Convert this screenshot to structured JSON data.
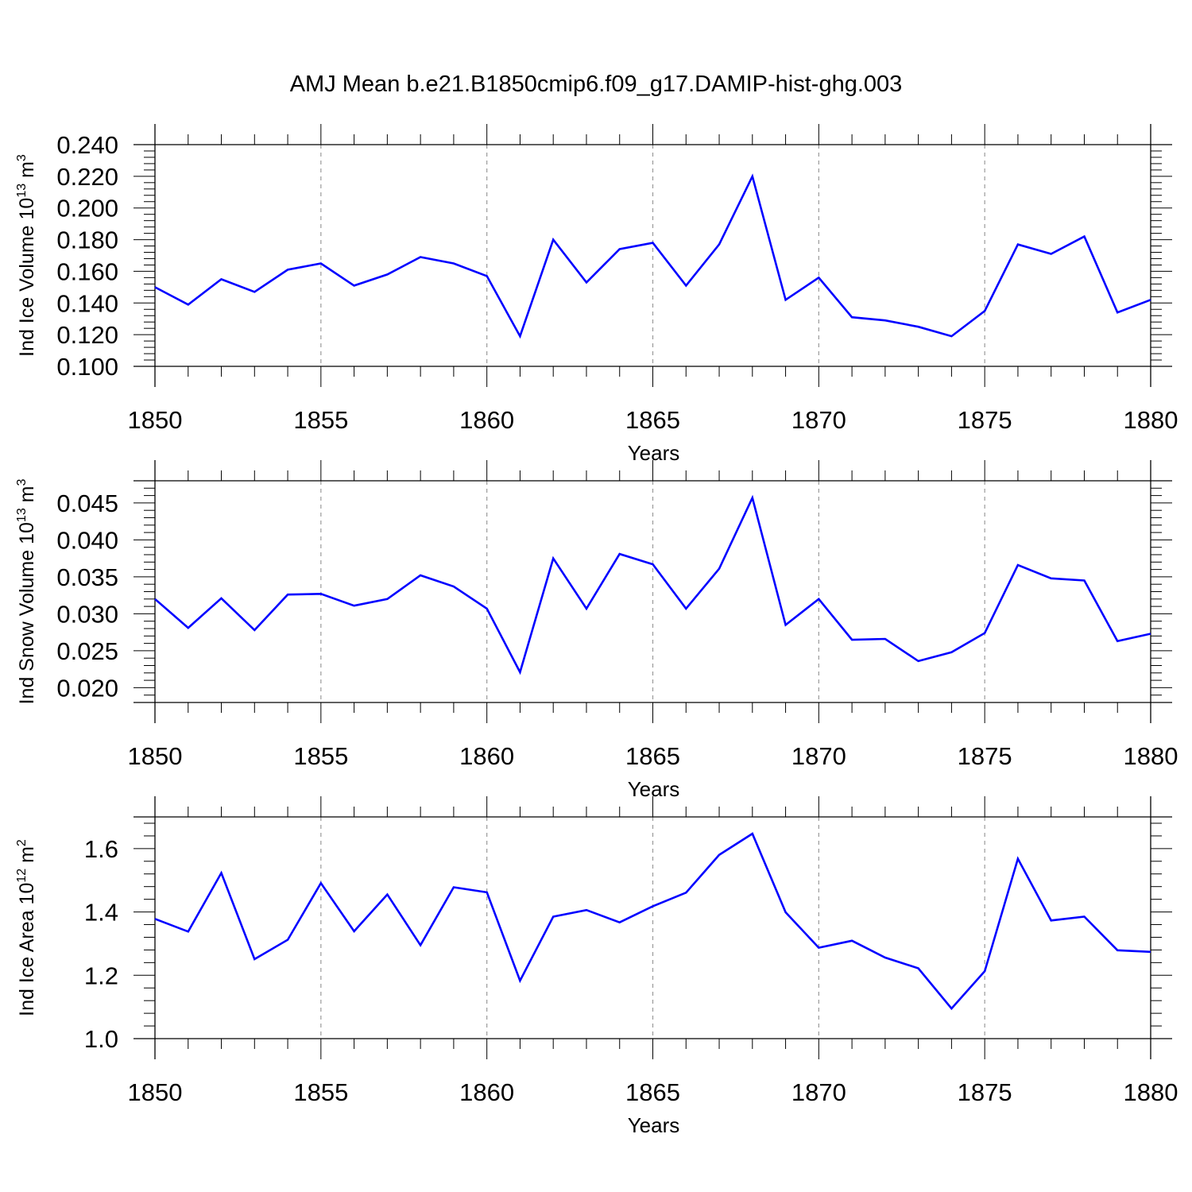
{
  "title": "AMJ Mean b.e21.B1850cmip6.f09_g17.DAMIP-hist-ghg.003",
  "chart_data": [
    {
      "type": "line",
      "title": "",
      "ylabel": "Ind Ice Volume 10",
      "ylabel_sup": "13",
      "ylabel_unit": " m",
      "ylabel_unit_sup": "3",
      "xlabel": "Years",
      "xlim": [
        1850,
        1880
      ],
      "ylim": [
        0.1,
        0.24
      ],
      "xticks": [
        "1850",
        "1855",
        "1860",
        "1865",
        "1870",
        "1875",
        "1880"
      ],
      "yticks": [
        "0.100",
        "0.120",
        "0.140",
        "0.160",
        "0.180",
        "0.200",
        "0.220",
        "0.240"
      ],
      "grid": "vertical dashed at major x ticks",
      "line_color": "#0000ff",
      "x": [
        1850,
        1851,
        1852,
        1853,
        1854,
        1855,
        1856,
        1857,
        1858,
        1859,
        1860,
        1861,
        1862,
        1863,
        1864,
        1865,
        1866,
        1867,
        1868,
        1869,
        1870,
        1871,
        1872,
        1873,
        1874,
        1875,
        1876,
        1877,
        1878,
        1879,
        1880
      ],
      "values": [
        0.15,
        0.139,
        0.155,
        0.147,
        0.161,
        0.165,
        0.151,
        0.158,
        0.169,
        0.165,
        0.157,
        0.119,
        0.18,
        0.153,
        0.174,
        0.178,
        0.151,
        0.177,
        0.22,
        0.142,
        0.156,
        0.131,
        0.129,
        0.125,
        0.119,
        0.135,
        0.177,
        0.171,
        0.182,
        0.134,
        0.142
      ]
    },
    {
      "type": "line",
      "title": "",
      "ylabel": "Ind Snow Volume 10",
      "ylabel_sup": "13",
      "ylabel_unit": " m",
      "ylabel_unit_sup": "3",
      "xlabel": "Years",
      "xlim": [
        1850,
        1880
      ],
      "ylim": [
        0.018,
        0.048
      ],
      "xticks": [
        "1850",
        "1855",
        "1860",
        "1865",
        "1870",
        "1875",
        "1880"
      ],
      "yticks": [
        "0.020",
        "0.025",
        "0.030",
        "0.035",
        "0.040",
        "0.045"
      ],
      "grid": "vertical dashed at major x ticks",
      "line_color": "#0000ff",
      "x": [
        1850,
        1851,
        1852,
        1853,
        1854,
        1855,
        1856,
        1857,
        1858,
        1859,
        1860,
        1861,
        1862,
        1863,
        1864,
        1865,
        1866,
        1867,
        1868,
        1869,
        1870,
        1871,
        1872,
        1873,
        1874,
        1875,
        1876,
        1877,
        1878,
        1879,
        1880
      ],
      "values": [
        0.032,
        0.0281,
        0.0321,
        0.0278,
        0.0326,
        0.0327,
        0.0311,
        0.032,
        0.0352,
        0.0337,
        0.0307,
        0.0221,
        0.0375,
        0.0307,
        0.0381,
        0.0367,
        0.0307,
        0.0361,
        0.0457,
        0.0285,
        0.032,
        0.0265,
        0.0266,
        0.0236,
        0.0248,
        0.0274,
        0.0366,
        0.0348,
        0.0345,
        0.0263,
        0.0273
      ]
    },
    {
      "type": "line",
      "title": "",
      "ylabel": "Ind Ice Area 10",
      "ylabel_sup": "12",
      "ylabel_unit": " m",
      "ylabel_unit_sup": "2",
      "xlabel": "Years",
      "xlim": [
        1850,
        1880
      ],
      "ylim": [
        1.0,
        1.7
      ],
      "xticks": [
        "1850",
        "1855",
        "1860",
        "1865",
        "1870",
        "1875",
        "1880"
      ],
      "yticks": [
        "1.0",
        "1.2",
        "1.4",
        "1.6"
      ],
      "grid": "vertical dashed at major x ticks",
      "line_color": "#0000ff",
      "x": [
        1850,
        1851,
        1852,
        1853,
        1854,
        1855,
        1856,
        1857,
        1858,
        1859,
        1860,
        1861,
        1862,
        1863,
        1864,
        1865,
        1866,
        1867,
        1868,
        1869,
        1870,
        1871,
        1872,
        1873,
        1874,
        1875,
        1876,
        1877,
        1878,
        1879,
        1880
      ],
      "values": [
        1.378,
        1.338,
        1.523,
        1.251,
        1.312,
        1.491,
        1.339,
        1.455,
        1.295,
        1.478,
        1.462,
        1.183,
        1.385,
        1.406,
        1.367,
        1.418,
        1.461,
        1.58,
        1.647,
        1.399,
        1.287,
        1.309,
        1.256,
        1.222,
        1.095,
        1.213,
        1.568,
        1.373,
        1.385,
        1.279,
        1.274
      ]
    }
  ]
}
